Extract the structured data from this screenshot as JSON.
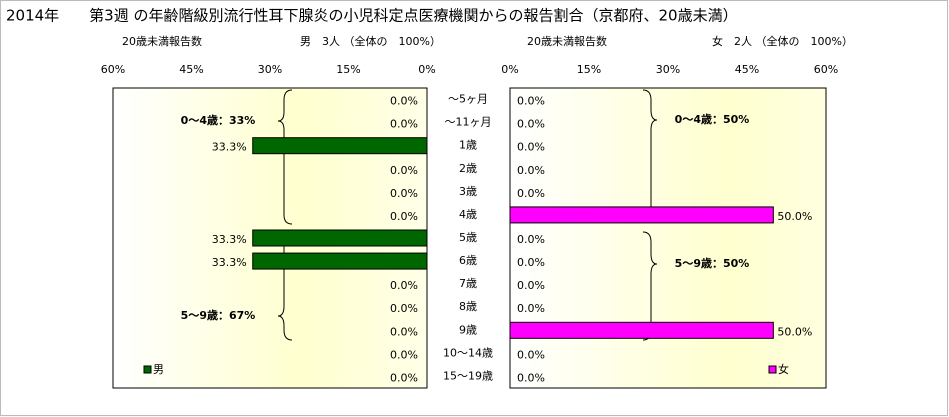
{
  "title": "2014年　　第3週 の年齢階級別流行性耳下腺炎の小児科定点医療機関からの報告割合（京都府、20歳未満）",
  "chart_data": [
    {
      "type": "bar",
      "orientation": "horizontal",
      "x_reversed": true,
      "subtitle": "20歳未満報告数",
      "total_label": "男　3人 （全体の　100%）",
      "categories": [
        "～5ヶ月",
        "～11ヶ月",
        "1歳",
        "2歳",
        "3歳",
        "4歳",
        "5歳",
        "6歳",
        "7歳",
        "8歳",
        "9歳",
        "10～14歳",
        "15～19歳"
      ],
      "series": [
        {
          "name": "男",
          "color": "#006600",
          "values": [
            0,
            0,
            33.3,
            0,
            0,
            0,
            33.3,
            33.3,
            0,
            0,
            0,
            0,
            0
          ],
          "value_labels": [
            "0.0%",
            "0.0%",
            "33.3%",
            "0.0%",
            "0.0%",
            "0.0%",
            "33.3%",
            "33.3%",
            "0.0%",
            "0.0%",
            "0.0%",
            "0.0%",
            "0.0%"
          ]
        }
      ],
      "xlim": [
        0,
        60
      ],
      "xticks": [
        {
          "value": 0,
          "label": "0%"
        },
        {
          "value": 15,
          "label": "15%"
        },
        {
          "value": 30,
          "label": "30%"
        },
        {
          "value": 45,
          "label": "45%"
        },
        {
          "value": 60,
          "label": "60%"
        }
      ],
      "annotations": [
        "0～4歳：33%",
        "5～9歳：67%"
      ],
      "legend": "lower left"
    },
    {
      "type": "bar",
      "orientation": "horizontal",
      "x_reversed": false,
      "subtitle": "20歳未満報告数",
      "total_label": "女　2人 （全体の　100%）",
      "series": [
        {
          "name": "女",
          "color": "#ff00ff",
          "values": [
            0,
            0,
            0,
            0,
            0,
            50,
            0,
            0,
            0,
            0,
            50,
            0,
            0
          ],
          "value_labels": [
            "0.0%",
            "0.0%",
            "0.0%",
            "0.0%",
            "0.0%",
            "50.0%",
            "0.0%",
            "0.0%",
            "0.0%",
            "0.0%",
            "50.0%",
            "0.0%",
            "0.0%"
          ]
        }
      ],
      "xlim": [
        0,
        60
      ],
      "xticks": [
        {
          "value": 0,
          "label": "0%"
        },
        {
          "value": 15,
          "label": "15%"
        },
        {
          "value": 30,
          "label": "30%"
        },
        {
          "value": 45,
          "label": "45%"
        },
        {
          "value": 60,
          "label": "60%"
        }
      ],
      "annotations": [
        "0～4歳：50%",
        "5～9歳：50%"
      ],
      "legend": "lower right"
    }
  ]
}
